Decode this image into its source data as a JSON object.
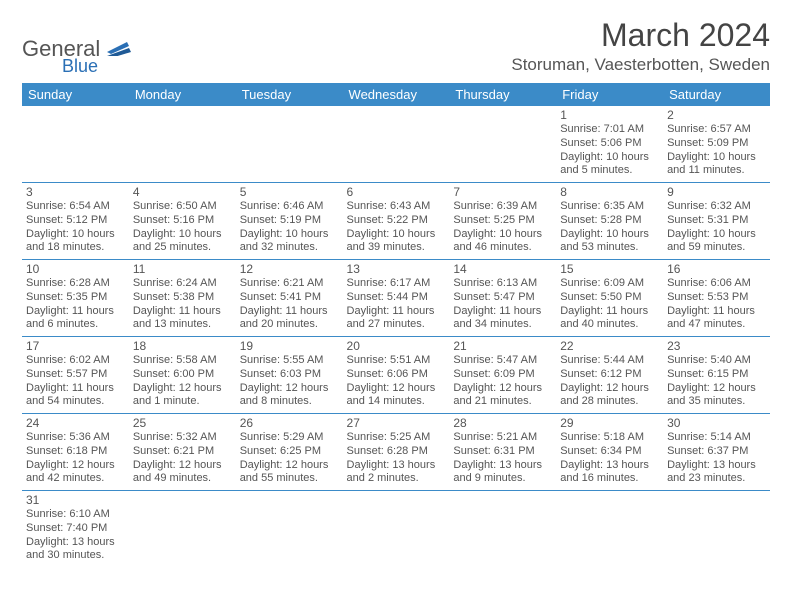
{
  "header": {
    "logo_main": "General",
    "logo_sub": "Blue",
    "month_title": "March 2024",
    "location": "Storuman, Vaesterbotten, Sweden"
  },
  "colors": {
    "header_bg": "#3b8bc8",
    "header_fg": "#ffffff",
    "text": "#555555",
    "rule": "#3b8bc8"
  },
  "day_headers": [
    "Sunday",
    "Monday",
    "Tuesday",
    "Wednesday",
    "Thursday",
    "Friday",
    "Saturday"
  ],
  "weeks": [
    [
      null,
      null,
      null,
      null,
      null,
      {
        "n": "1",
        "sr": "Sunrise: 7:01 AM",
        "ss": "Sunset: 5:06 PM",
        "dl1": "Daylight: 10 hours",
        "dl2": "and 5 minutes."
      },
      {
        "n": "2",
        "sr": "Sunrise: 6:57 AM",
        "ss": "Sunset: 5:09 PM",
        "dl1": "Daylight: 10 hours",
        "dl2": "and 11 minutes."
      }
    ],
    [
      {
        "n": "3",
        "sr": "Sunrise: 6:54 AM",
        "ss": "Sunset: 5:12 PM",
        "dl1": "Daylight: 10 hours",
        "dl2": "and 18 minutes."
      },
      {
        "n": "4",
        "sr": "Sunrise: 6:50 AM",
        "ss": "Sunset: 5:16 PM",
        "dl1": "Daylight: 10 hours",
        "dl2": "and 25 minutes."
      },
      {
        "n": "5",
        "sr": "Sunrise: 6:46 AM",
        "ss": "Sunset: 5:19 PM",
        "dl1": "Daylight: 10 hours",
        "dl2": "and 32 minutes."
      },
      {
        "n": "6",
        "sr": "Sunrise: 6:43 AM",
        "ss": "Sunset: 5:22 PM",
        "dl1": "Daylight: 10 hours",
        "dl2": "and 39 minutes."
      },
      {
        "n": "7",
        "sr": "Sunrise: 6:39 AM",
        "ss": "Sunset: 5:25 PM",
        "dl1": "Daylight: 10 hours",
        "dl2": "and 46 minutes."
      },
      {
        "n": "8",
        "sr": "Sunrise: 6:35 AM",
        "ss": "Sunset: 5:28 PM",
        "dl1": "Daylight: 10 hours",
        "dl2": "and 53 minutes."
      },
      {
        "n": "9",
        "sr": "Sunrise: 6:32 AM",
        "ss": "Sunset: 5:31 PM",
        "dl1": "Daylight: 10 hours",
        "dl2": "and 59 minutes."
      }
    ],
    [
      {
        "n": "10",
        "sr": "Sunrise: 6:28 AM",
        "ss": "Sunset: 5:35 PM",
        "dl1": "Daylight: 11 hours",
        "dl2": "and 6 minutes."
      },
      {
        "n": "11",
        "sr": "Sunrise: 6:24 AM",
        "ss": "Sunset: 5:38 PM",
        "dl1": "Daylight: 11 hours",
        "dl2": "and 13 minutes."
      },
      {
        "n": "12",
        "sr": "Sunrise: 6:21 AM",
        "ss": "Sunset: 5:41 PM",
        "dl1": "Daylight: 11 hours",
        "dl2": "and 20 minutes."
      },
      {
        "n": "13",
        "sr": "Sunrise: 6:17 AM",
        "ss": "Sunset: 5:44 PM",
        "dl1": "Daylight: 11 hours",
        "dl2": "and 27 minutes."
      },
      {
        "n": "14",
        "sr": "Sunrise: 6:13 AM",
        "ss": "Sunset: 5:47 PM",
        "dl1": "Daylight: 11 hours",
        "dl2": "and 34 minutes."
      },
      {
        "n": "15",
        "sr": "Sunrise: 6:09 AM",
        "ss": "Sunset: 5:50 PM",
        "dl1": "Daylight: 11 hours",
        "dl2": "and 40 minutes."
      },
      {
        "n": "16",
        "sr": "Sunrise: 6:06 AM",
        "ss": "Sunset: 5:53 PM",
        "dl1": "Daylight: 11 hours",
        "dl2": "and 47 minutes."
      }
    ],
    [
      {
        "n": "17",
        "sr": "Sunrise: 6:02 AM",
        "ss": "Sunset: 5:57 PM",
        "dl1": "Daylight: 11 hours",
        "dl2": "and 54 minutes."
      },
      {
        "n": "18",
        "sr": "Sunrise: 5:58 AM",
        "ss": "Sunset: 6:00 PM",
        "dl1": "Daylight: 12 hours",
        "dl2": "and 1 minute."
      },
      {
        "n": "19",
        "sr": "Sunrise: 5:55 AM",
        "ss": "Sunset: 6:03 PM",
        "dl1": "Daylight: 12 hours",
        "dl2": "and 8 minutes."
      },
      {
        "n": "20",
        "sr": "Sunrise: 5:51 AM",
        "ss": "Sunset: 6:06 PM",
        "dl1": "Daylight: 12 hours",
        "dl2": "and 14 minutes."
      },
      {
        "n": "21",
        "sr": "Sunrise: 5:47 AM",
        "ss": "Sunset: 6:09 PM",
        "dl1": "Daylight: 12 hours",
        "dl2": "and 21 minutes."
      },
      {
        "n": "22",
        "sr": "Sunrise: 5:44 AM",
        "ss": "Sunset: 6:12 PM",
        "dl1": "Daylight: 12 hours",
        "dl2": "and 28 minutes."
      },
      {
        "n": "23",
        "sr": "Sunrise: 5:40 AM",
        "ss": "Sunset: 6:15 PM",
        "dl1": "Daylight: 12 hours",
        "dl2": "and 35 minutes."
      }
    ],
    [
      {
        "n": "24",
        "sr": "Sunrise: 5:36 AM",
        "ss": "Sunset: 6:18 PM",
        "dl1": "Daylight: 12 hours",
        "dl2": "and 42 minutes."
      },
      {
        "n": "25",
        "sr": "Sunrise: 5:32 AM",
        "ss": "Sunset: 6:21 PM",
        "dl1": "Daylight: 12 hours",
        "dl2": "and 49 minutes."
      },
      {
        "n": "26",
        "sr": "Sunrise: 5:29 AM",
        "ss": "Sunset: 6:25 PM",
        "dl1": "Daylight: 12 hours",
        "dl2": "and 55 minutes."
      },
      {
        "n": "27",
        "sr": "Sunrise: 5:25 AM",
        "ss": "Sunset: 6:28 PM",
        "dl1": "Daylight: 13 hours",
        "dl2": "and 2 minutes."
      },
      {
        "n": "28",
        "sr": "Sunrise: 5:21 AM",
        "ss": "Sunset: 6:31 PM",
        "dl1": "Daylight: 13 hours",
        "dl2": "and 9 minutes."
      },
      {
        "n": "29",
        "sr": "Sunrise: 5:18 AM",
        "ss": "Sunset: 6:34 PM",
        "dl1": "Daylight: 13 hours",
        "dl2": "and 16 minutes."
      },
      {
        "n": "30",
        "sr": "Sunrise: 5:14 AM",
        "ss": "Sunset: 6:37 PM",
        "dl1": "Daylight: 13 hours",
        "dl2": "and 23 minutes."
      }
    ],
    [
      {
        "n": "31",
        "sr": "Sunrise: 6:10 AM",
        "ss": "Sunset: 7:40 PM",
        "dl1": "Daylight: 13 hours",
        "dl2": "and 30 minutes."
      },
      null,
      null,
      null,
      null,
      null,
      null
    ]
  ]
}
